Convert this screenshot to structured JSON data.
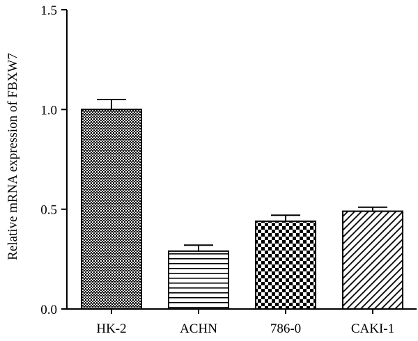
{
  "chart_data": {
    "type": "bar",
    "title": "",
    "xlabel": "",
    "ylabel": "Relative mRNA expression of FBXW7",
    "categories": [
      "HK-2",
      "ACHN",
      "786-0",
      "CAKI-1"
    ],
    "values": [
      1.0,
      0.29,
      0.44,
      0.49
    ],
    "error": [
      0.05,
      0.03,
      0.03,
      0.02
    ],
    "patterns": [
      "crosshatch-dense",
      "horizontal-lines",
      "checkerboard",
      "diagonal-lines"
    ],
    "ylim": [
      0,
      1.5
    ],
    "yticks": [
      0.0,
      0.5,
      1.0,
      1.5
    ],
    "ytick_labels": [
      "0.0",
      "0.5",
      "1.0",
      "1.5"
    ],
    "grid": false,
    "legend": "none",
    "colors": {
      "bar_stroke": "#000000",
      "axis": "#000000",
      "fill": "#000000",
      "background": "#ffffff"
    }
  }
}
